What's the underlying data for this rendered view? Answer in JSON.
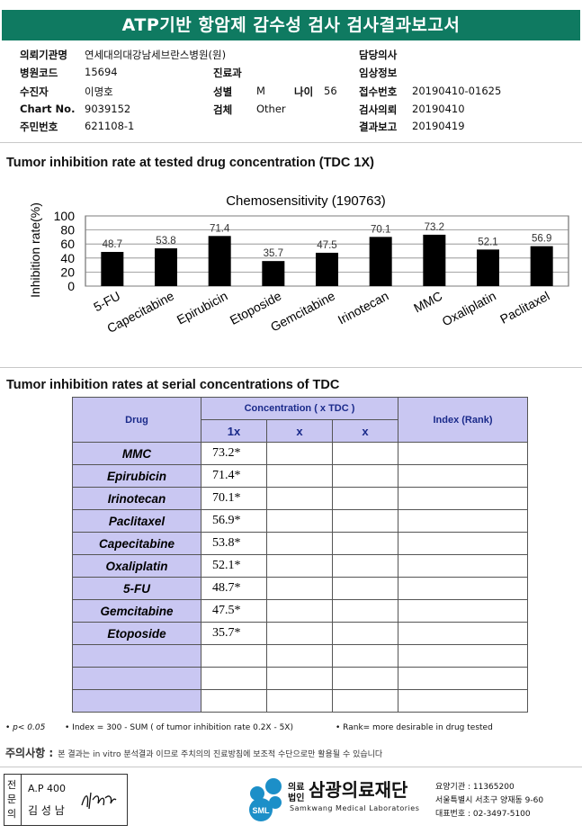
{
  "header": {
    "title": "ATP기반 항암제 감수성 검사 검사결과보고서"
  },
  "info": {
    "col1": [
      {
        "label": "의뢰기관명",
        "value": "연세대의대강남세브란스병원(원)"
      },
      {
        "label": "병원코드",
        "value": "15694"
      },
      {
        "label": "수진자",
        "value": "이명호"
      },
      {
        "label": "Chart No.",
        "value": "9039152"
      },
      {
        "label": "주민번호",
        "value": "621108-1"
      }
    ],
    "col2": [
      {
        "label": "진료과",
        "value": ""
      },
      {
        "label": "성별",
        "value": "M"
      },
      {
        "label": "검체",
        "value": "Other"
      }
    ],
    "age": {
      "label": "나이",
      "value": "56"
    },
    "col3": [
      {
        "label": "담당의사",
        "value": ""
      },
      {
        "label": "임상정보",
        "value": ""
      },
      {
        "label": "접수번호",
        "value": "20190410-01625"
      },
      {
        "label": "검사의뢰",
        "value": "20190410"
      },
      {
        "label": "결과보고",
        "value": "20190419"
      }
    ]
  },
  "section1": {
    "title": "Tumor inhibition rate at tested drug concentration (TDC 1X)"
  },
  "chart_data": {
    "type": "bar",
    "title": "Chemosensitivity (190763)",
    "ylabel": "Inhibition rate(%)",
    "xlabel": "",
    "categories": [
      "5-FU",
      "Capecitabine",
      "Epirubicin",
      "Etoposide",
      "Gemcitabine",
      "Irinotecan",
      "MMC",
      "Oxaliplatin",
      "Paclitaxel"
    ],
    "values": [
      48.7,
      53.8,
      71.4,
      35.7,
      47.5,
      70.1,
      73.2,
      52.1,
      56.9
    ],
    "value_labels": [
      "48.7",
      "53.8",
      "71.4",
      "35.7",
      "47.5",
      "70.1",
      "73.2",
      "52.1",
      "56.9"
    ],
    "yticks": [
      "0",
      "20",
      "40",
      "60",
      "80",
      "100"
    ],
    "ylim": [
      0,
      100
    ],
    "grid": true,
    "bar_color": "#000000"
  },
  "section2": {
    "title": "Tumor inhibition rates at serial concentrations of TDC"
  },
  "table": {
    "drug_header": "Drug",
    "conc_header": "Concentration ( x TDC )",
    "index_header": "Index (Rank)",
    "sub_headers": [
      "1x",
      "x",
      "x"
    ],
    "rows": [
      {
        "drug": "MMC",
        "v1": "73.2*"
      },
      {
        "drug": "Epirubicin",
        "v1": "71.4*"
      },
      {
        "drug": "Irinotecan",
        "v1": "70.1*"
      },
      {
        "drug": "Paclitaxel",
        "v1": "56.9*"
      },
      {
        "drug": "Capecitabine",
        "v1": "53.8*"
      },
      {
        "drug": "Oxaliplatin",
        "v1": "52.1*"
      },
      {
        "drug": "5-FU",
        "v1": "48.7*"
      },
      {
        "drug": "Gemcitabine",
        "v1": "47.5*"
      },
      {
        "drug": "Etoposide",
        "v1": "35.7*"
      }
    ],
    "empty_rows": 3
  },
  "footnotes": {
    "p": "• p< 0.05",
    "index": "• Index = 300 - SUM ( of tumor inhibition rate 0.2X  -  5X)",
    "rank": "• Rank= more desirable in drug tested"
  },
  "notice": {
    "label": "주의사항 :",
    "text": "본 결과는 in vitro 분석결과 이므로 주치의의 진료방침에 보조적 수단으로만 활용될 수 있습니다"
  },
  "signature": {
    "side_label": "전문의",
    "id": "A.P 400",
    "name": "김 성 남"
  },
  "org": {
    "logo_text": "SML",
    "prefix_top": "의료",
    "prefix_bottom": "법인",
    "name": "삼광의료재단",
    "english": "Samkwang Medical Laboratories",
    "code": "요양기관 : 11365200",
    "address": "서울특별시 서초구 양재동 9-60",
    "phone": "대표번호 : 02-3497-5100"
  },
  "colors": {
    "title_bar": "#0f7a61",
    "table_header": "#c9c7f2",
    "header_text": "#1a2a8a"
  }
}
